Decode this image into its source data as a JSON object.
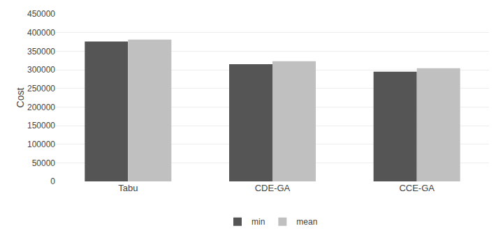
{
  "chart_data": {
    "type": "bar",
    "categories": [
      "Tabu",
      "CDE-GA",
      "CCE-GA"
    ],
    "series": [
      {
        "name": "min",
        "color": "#555555",
        "values": [
          376000,
          315000,
          295000
        ]
      },
      {
        "name": "mean",
        "color": "#c0c0c0",
        "values": [
          381000,
          323000,
          304000
        ]
      }
    ],
    "ylabel": "Cost",
    "ylim": [
      0,
      450000
    ],
    "yticks": [
      0,
      50000,
      100000,
      150000,
      200000,
      250000,
      300000,
      350000,
      400000,
      450000
    ],
    "grid": true,
    "legend": "bottom"
  }
}
